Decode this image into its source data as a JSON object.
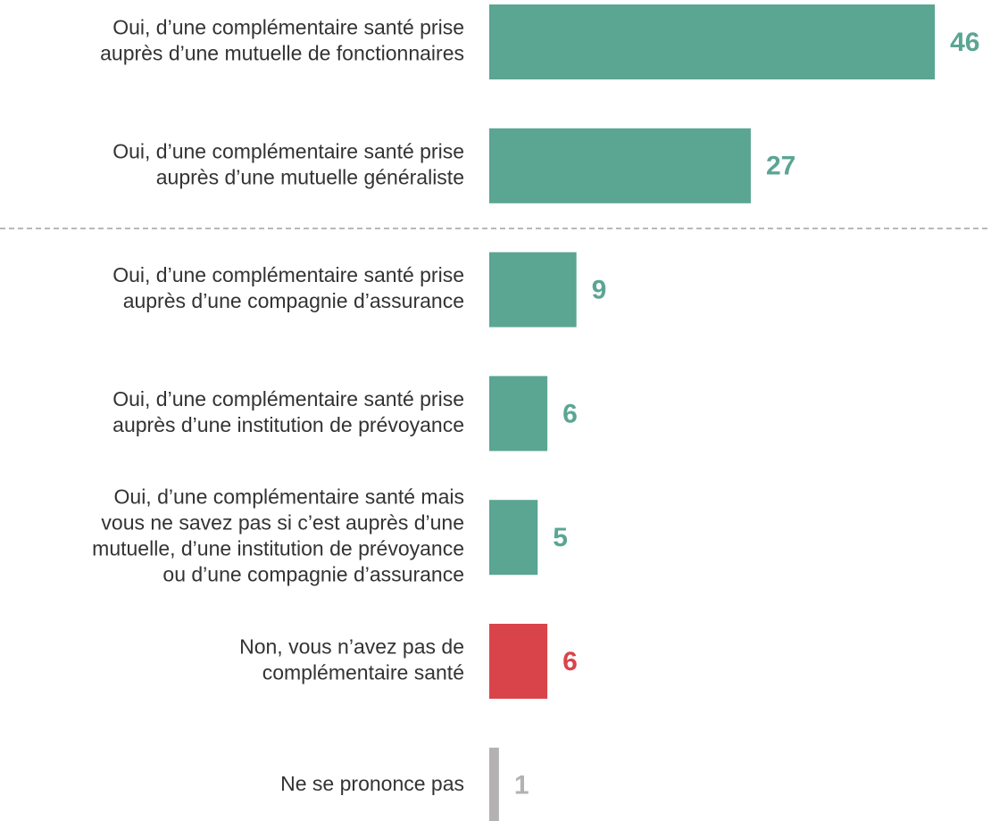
{
  "chart_data": {
    "type": "bar",
    "orientation": "horizontal",
    "categories": [
      [
        "Oui, d’une complémentaire santé prise",
        "auprès d’une mutuelle de fonctionnaires"
      ],
      [
        "Oui, d’une complémentaire santé prise",
        "auprès d’une mutuelle généraliste"
      ],
      [
        "Oui, d’une complémentaire santé prise",
        "auprès d’une compagnie d’assurance"
      ],
      [
        "Oui, d’une complémentaire santé prise",
        "auprès d’une institution de prévoyance"
      ],
      [
        "Oui, d’une complémentaire santé mais",
        "vous ne savez pas si c’est auprès d’une",
        "mutuelle, d’une institution de prévoyance",
        "ou d’une compagnie d’assurance"
      ],
      [
        "Non, vous n’avez pas de",
        "complémentaire santé"
      ],
      [
        "Ne se prononce pas"
      ]
    ],
    "values": [
      46,
      27,
      9,
      6,
      5,
      6,
      1
    ],
    "colors": [
      "#5ba593",
      "#5ba593",
      "#5ba593",
      "#5ba593",
      "#5ba593",
      "#d9444b",
      "#b3b1b1"
    ]
  }
}
